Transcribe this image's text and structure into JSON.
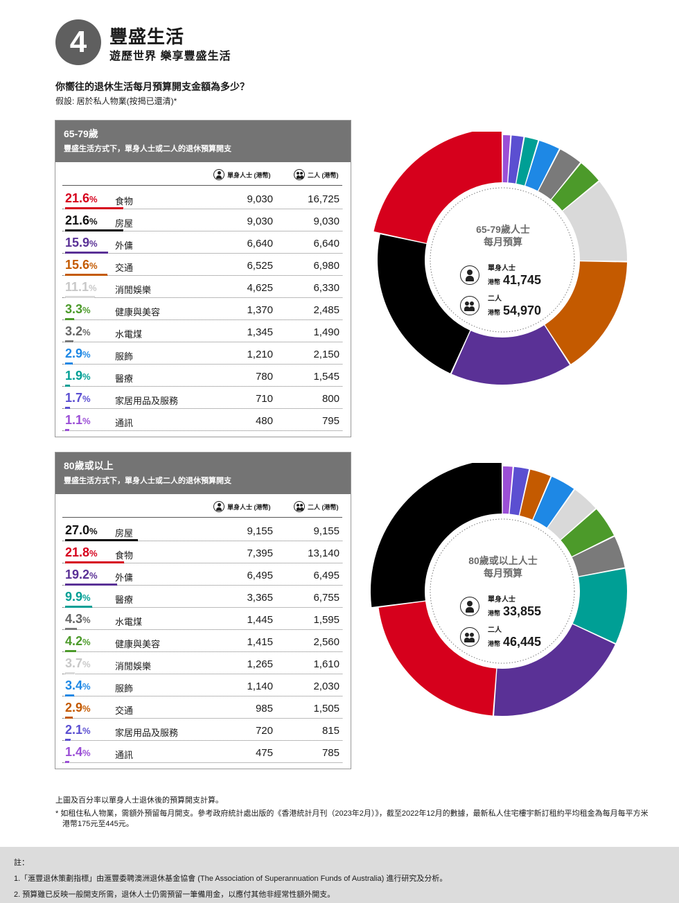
{
  "section": {
    "number": "4",
    "title": "豐盛生活",
    "subtitle": "遊歷世界  樂享豐盛生活"
  },
  "question": "你嚮往的退休生活每月預算開支金額為多少？",
  "assumption": "假設: 居於私人物業(按揭已還清)*",
  "column_headers": {
    "single": "單身人士 (港幣)",
    "couple": "二人 (港幣)"
  },
  "colors": {
    "food": "#d6001c",
    "housing": "#000000",
    "dining": "#5a3196",
    "transport": "#c45a00",
    "leisure": "#d9d9d9",
    "health": "#4c9a2a",
    "utilities": "#7a7a7a",
    "clothing": "#1e88e5",
    "medical": "#009f95",
    "household": "#5b4fd1",
    "telecom": "#9b4fd6"
  },
  "chart_data": [
    {
      "type": "table",
      "panel_title": "65-79歲",
      "panel_desc": "豐盛生活方式下，單身人士或二人的退休預算開支",
      "center_title": "65-79歲人士\n每月預算",
      "single_label": "單身人士",
      "couple_label": "二人",
      "currency": "港幣",
      "single_total": "41,745",
      "couple_total": "54,970",
      "rows": [
        {
          "key": "food",
          "pct": 21.6,
          "category": "食物",
          "single": 9030,
          "couple": 16725
        },
        {
          "key": "housing",
          "pct": 21.6,
          "category": "房屋",
          "single": 9030,
          "couple": 9030
        },
        {
          "key": "dining",
          "pct": 15.9,
          "category": "外傭",
          "single": 6640,
          "couple": 6640
        },
        {
          "key": "transport",
          "pct": 15.6,
          "category": "交通",
          "single": 6525,
          "couple": 6980
        },
        {
          "key": "leisure",
          "pct": 11.1,
          "category": "消閒娛樂",
          "single": 4625,
          "couple": 6330
        },
        {
          "key": "health",
          "pct": 3.3,
          "category": "健康與美容",
          "single": 1370,
          "couple": 2485
        },
        {
          "key": "utilities",
          "pct": 3.2,
          "category": "水電煤",
          "single": 1345,
          "couple": 1490
        },
        {
          "key": "clothing",
          "pct": 2.9,
          "category": "服飾",
          "single": 1210,
          "couple": 2150
        },
        {
          "key": "medical",
          "pct": 1.9,
          "category": "醫療",
          "single": 780,
          "couple": 1545
        },
        {
          "key": "household",
          "pct": 1.7,
          "category": "家居用品及服務",
          "single": 710,
          "couple": 800
        },
        {
          "key": "telecom",
          "pct": 1.1,
          "category": "通訊",
          "single": 480,
          "couple": 795
        }
      ],
      "donut_order": [
        "telecom",
        "household",
        "medical",
        "clothing",
        "utilities",
        "health",
        "leisure",
        "transport",
        "dining",
        "housing",
        "food"
      ]
    },
    {
      "type": "table",
      "panel_title": "80歲或以上",
      "panel_desc": "豐盛生活方式下，單身人士或二人的退休預算開支",
      "center_title": "80歲或以上人士\n每月預算",
      "single_label": "單身人士",
      "couple_label": "二人",
      "currency": "港幣",
      "single_total": "33,855",
      "couple_total": "46,445",
      "rows": [
        {
          "key": "housing",
          "pct": 27.0,
          "category": "房屋",
          "single": 9155,
          "couple": 9155
        },
        {
          "key": "food",
          "pct": 21.8,
          "category": "食物",
          "single": 7395,
          "couple": 13140
        },
        {
          "key": "dining",
          "pct": 19.2,
          "category": "外傭",
          "single": 6495,
          "couple": 6495
        },
        {
          "key": "medical",
          "pct": 9.9,
          "category": "醫療",
          "single": 3365,
          "couple": 6755
        },
        {
          "key": "utilities",
          "pct": 4.3,
          "category": "水電煤",
          "single": 1445,
          "couple": 1595
        },
        {
          "key": "health",
          "pct": 4.2,
          "category": "健康與美容",
          "single": 1415,
          "couple": 2560
        },
        {
          "key": "leisure",
          "pct": 3.7,
          "category": "消閒娛樂",
          "single": 1265,
          "couple": 1610
        },
        {
          "key": "clothing",
          "pct": 3.4,
          "category": "服飾",
          "single": 1140,
          "couple": 2030
        },
        {
          "key": "transport",
          "pct": 2.9,
          "category": "交通",
          "single": 985,
          "couple": 1505
        },
        {
          "key": "household",
          "pct": 2.1,
          "category": "家居用品及服務",
          "single": 720,
          "couple": 815
        },
        {
          "key": "telecom",
          "pct": 1.4,
          "category": "通訊",
          "single": 475,
          "couple": 785
        }
      ],
      "donut_order": [
        "telecom",
        "household",
        "transport",
        "clothing",
        "leisure",
        "health",
        "utilities",
        "medical",
        "dining",
        "food",
        "housing"
      ]
    }
  ],
  "notes": {
    "top": "上圖及百分率以單身人士退休後的預算開支計算。",
    "bullet": "* 如租住私人物業，需額外預留每月開支。參考政府統計處出版的《香港統計月刊（2023年2月）》，截至2022年12月的數據，最新私人住宅樓宇新訂租約平均租金為每月每平方米港幣175元至445元。"
  },
  "footer": {
    "title": "註：",
    "line1": "1.「滙豐退休策劃指標」由滙豐委聘澳洲退休基金協會 (The Association of Superannuation Funds of Australia) 進行研究及分析。",
    "line2": "2. 預算雖已反映一般開支所需，退休人士仍需預留一筆備用金，以應付其他非經常性額外開支。"
  }
}
